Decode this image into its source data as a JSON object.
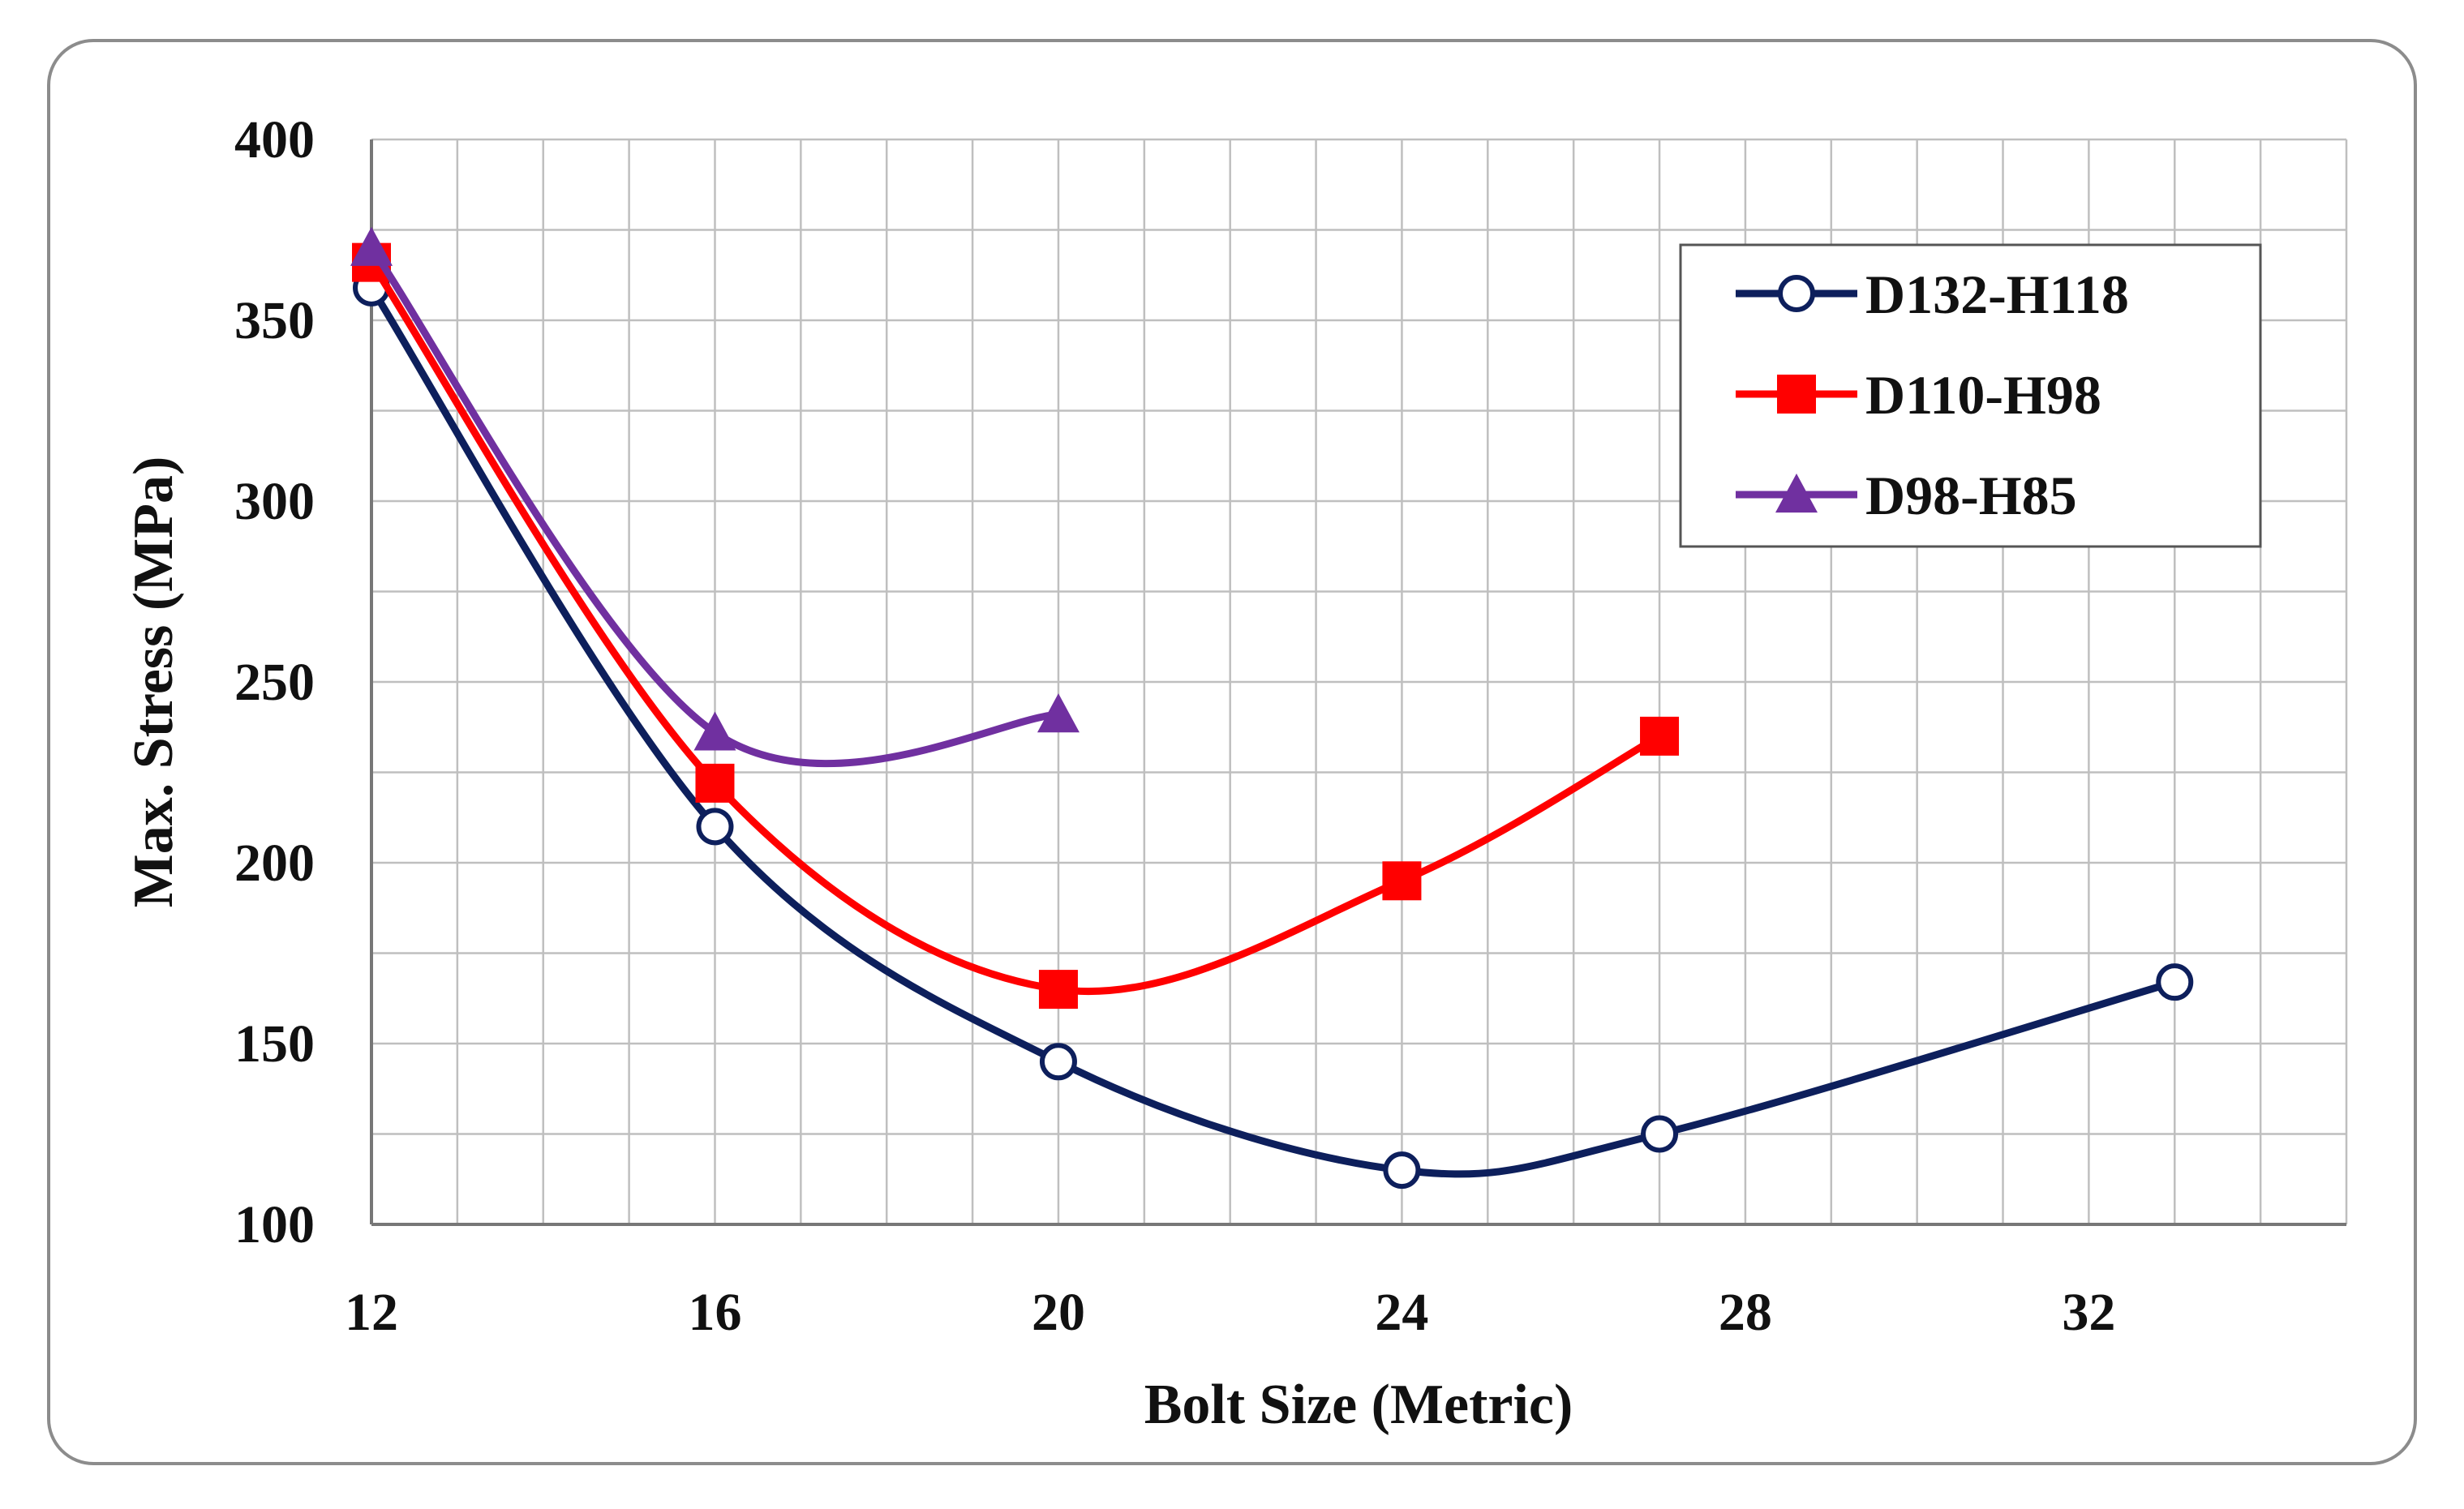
{
  "chart_data": {
    "type": "line",
    "title": "",
    "xlabel": "Bolt Size (Metric)",
    "ylabel": "Max. Stress (MPa)",
    "xlim": [
      12,
      35
    ],
    "ylim": [
      100,
      400
    ],
    "x_ticks": [
      12,
      16,
      20,
      24,
      28,
      32
    ],
    "x_minor_step": 1,
    "y_ticks": [
      100,
      150,
      200,
      250,
      300,
      350,
      400
    ],
    "y_minor_step": 25,
    "grid": true,
    "smoothed": true,
    "legend_position": "top-right",
    "series": [
      {
        "name": "D132-H118",
        "color": "#0d1f5c",
        "marker": "circle-open",
        "x": [
          12,
          16,
          20,
          24,
          27,
          33
        ],
        "y": [
          359,
          210,
          145,
          115,
          125,
          167
        ]
      },
      {
        "name": "D110-H98",
        "color": "#ff0000",
        "marker": "square",
        "x": [
          12,
          16,
          20,
          24,
          27
        ],
        "y": [
          366,
          222,
          165,
          195,
          235
        ]
      },
      {
        "name": "D98-H85",
        "color": "#7030a0",
        "marker": "triangle",
        "x": [
          12,
          16,
          20
        ],
        "y": [
          370,
          236,
          241
        ]
      }
    ]
  }
}
